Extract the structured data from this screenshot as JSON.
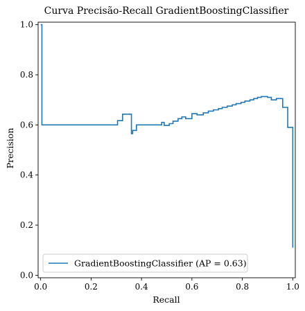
{
  "chart_data": {
    "type": "line",
    "title": "Curva Precisão-Recall GradientBoostingClassifier",
    "xlabel": "Recall",
    "ylabel": "Precision",
    "xlim": [
      -0.01,
      1.01
    ],
    "ylim": [
      -0.01,
      1.01
    ],
    "x_ticks": [
      0.0,
      0.2,
      0.4,
      0.6,
      0.8,
      1.0
    ],
    "y_ticks": [
      0.0,
      0.2,
      0.4,
      0.6,
      0.8,
      1.0
    ],
    "x_tick_labels": [
      "0.0",
      "0.2",
      "0.4",
      "0.6",
      "0.8",
      "1.0"
    ],
    "y_tick_labels": [
      "0.0",
      "0.2",
      "0.4",
      "0.6",
      "0.8",
      "1.0"
    ],
    "grid": false,
    "legend_position": "lower-left",
    "series": [
      {
        "name": "GradientBoostingClassifier (AP = 0.63)",
        "color": "#1f77b4",
        "drawstyle": "steps-post",
        "points": [
          [
            1.0,
            0.11
          ],
          [
            1.0,
            0.59
          ],
          [
            0.98,
            0.59
          ],
          [
            0.98,
            0.67
          ],
          [
            0.96,
            0.67
          ],
          [
            0.96,
            0.705
          ],
          [
            0.935,
            0.705
          ],
          [
            0.935,
            0.7
          ],
          [
            0.915,
            0.7
          ],
          [
            0.915,
            0.71
          ],
          [
            0.9,
            0.71
          ],
          [
            0.9,
            0.713
          ],
          [
            0.875,
            0.713
          ],
          [
            0.875,
            0.71
          ],
          [
            0.86,
            0.71
          ],
          [
            0.86,
            0.705
          ],
          [
            0.845,
            0.705
          ],
          [
            0.845,
            0.7
          ],
          [
            0.83,
            0.7
          ],
          [
            0.83,
            0.695
          ],
          [
            0.81,
            0.695
          ],
          [
            0.81,
            0.69
          ],
          [
            0.795,
            0.69
          ],
          [
            0.795,
            0.685
          ],
          [
            0.775,
            0.685
          ],
          [
            0.775,
            0.68
          ],
          [
            0.76,
            0.68
          ],
          [
            0.76,
            0.675
          ],
          [
            0.74,
            0.675
          ],
          [
            0.74,
            0.67
          ],
          [
            0.72,
            0.67
          ],
          [
            0.72,
            0.665
          ],
          [
            0.705,
            0.665
          ],
          [
            0.705,
            0.66
          ],
          [
            0.685,
            0.66
          ],
          [
            0.685,
            0.655
          ],
          [
            0.665,
            0.655
          ],
          [
            0.665,
            0.648
          ],
          [
            0.645,
            0.648
          ],
          [
            0.645,
            0.64
          ],
          [
            0.62,
            0.64
          ],
          [
            0.62,
            0.645
          ],
          [
            0.6,
            0.645
          ],
          [
            0.6,
            0.625
          ],
          [
            0.575,
            0.625
          ],
          [
            0.575,
            0.632
          ],
          [
            0.56,
            0.632
          ],
          [
            0.56,
            0.625
          ],
          [
            0.545,
            0.625
          ],
          [
            0.545,
            0.615
          ],
          [
            0.525,
            0.615
          ],
          [
            0.525,
            0.605
          ],
          [
            0.51,
            0.605
          ],
          [
            0.51,
            0.598
          ],
          [
            0.49,
            0.598
          ],
          [
            0.49,
            0.61
          ],
          [
            0.48,
            0.61
          ],
          [
            0.48,
            0.6
          ],
          [
            0.38,
            0.6
          ],
          [
            0.38,
            0.578
          ],
          [
            0.365,
            0.578
          ],
          [
            0.365,
            0.565
          ],
          [
            0.36,
            0.565
          ],
          [
            0.36,
            0.643
          ],
          [
            0.325,
            0.643
          ],
          [
            0.325,
            0.617
          ],
          [
            0.305,
            0.617
          ],
          [
            0.305,
            0.6
          ],
          [
            0.005,
            0.6
          ],
          [
            0.005,
            1.0
          ],
          [
            0.0,
            1.0
          ]
        ]
      }
    ]
  }
}
